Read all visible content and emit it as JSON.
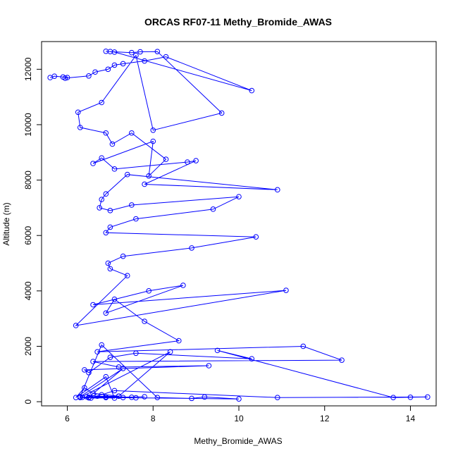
{
  "chart_data": {
    "type": "line",
    "title": "ORCAS RF07-11 Methy_Bromide_AWAS",
    "xlabel": "Methy_Bromide_AWAS",
    "ylabel": "Altitude (m)",
    "xlim": [
      5.4,
      14.6
    ],
    "ylim": [
      -150,
      13000
    ],
    "x_ticks": [
      6,
      8,
      10,
      12,
      14
    ],
    "y_ticks": [
      0,
      2000,
      4000,
      6000,
      8000,
      10000,
      12000
    ],
    "grid": false,
    "legend": "none",
    "marker": "open-circle",
    "color": "#0000ff",
    "series": [
      {
        "x": [
          5.6,
          5.7,
          5.9,
          6.0,
          5.95,
          6.5,
          6.65,
          6.95,
          7.1,
          7.3,
          7.8,
          8.3,
          10.3,
          7.1,
          6.9,
          7.0,
          7.5,
          7.7,
          8.1,
          9.6,
          8.0,
          7.6,
          6.8,
          6.25,
          6.3,
          6.9,
          7.05,
          7.5,
          8.3,
          7.9,
          8.0,
          6.6,
          6.8,
          7.1,
          8.8,
          9.0,
          7.8,
          10.9,
          7.4,
          6.9,
          6.8,
          6.75,
          7.0,
          7.5,
          10.0,
          9.4,
          7.6,
          7.0,
          6.9,
          10.4,
          8.9,
          7.3,
          6.95,
          7.0,
          7.4,
          6.2,
          11.1,
          6.6,
          7.9,
          8.7,
          6.9,
          7.1,
          7.8,
          8.6,
          6.7,
          11.5,
          12.4,
          6.6,
          7.2,
          9.3,
          6.4,
          6.5,
          7.0,
          7.6,
          10.3,
          9.5,
          13.6,
          14.0,
          14.4,
          10.9,
          7.1,
          6.8,
          6.5,
          6.3,
          8.4,
          7.2,
          6.6,
          6.4,
          6.2,
          6.9,
          7.1,
          6.5,
          7.3,
          6.3,
          6.8,
          8.1,
          8.9,
          9.2,
          10.0,
          7.6,
          6.35,
          7.2,
          6.45,
          6.9,
          7.5,
          6.7,
          6.9,
          7.3,
          6.55,
          7.8
        ],
        "y": [
          11700,
          11750,
          11720,
          11700,
          11680,
          11760,
          11900,
          12000,
          12150,
          12200,
          12300,
          12450,
          11230,
          12620,
          12650,
          12640,
          12600,
          12630,
          12640,
          10420,
          9800,
          12500,
          10800,
          10450,
          9900,
          9700,
          9300,
          9700,
          8750,
          8150,
          9400,
          8600,
          8800,
          8400,
          8650,
          8700,
          7850,
          7650,
          8200,
          7500,
          7300,
          7000,
          6900,
          7100,
          7400,
          6950,
          6600,
          6300,
          6100,
          5950,
          5550,
          5250,
          5000,
          4800,
          4550,
          2750,
          4020,
          3500,
          4000,
          4200,
          3200,
          3700,
          2900,
          2200,
          1800,
          2000,
          1500,
          1450,
          1250,
          1300,
          1150,
          1050,
          1600,
          1750,
          1550,
          1850,
          150,
          160,
          170,
          150,
          400,
          250,
          140,
          150,
          1800,
          200,
          300,
          500,
          150,
          900,
          130,
          160,
          1200,
          180,
          2050,
          150,
          120,
          170,
          100,
          140,
          160,
          200,
          180,
          150,
          160,
          200,
          170,
          150,
          130,
          180
        ]
      }
    ]
  }
}
